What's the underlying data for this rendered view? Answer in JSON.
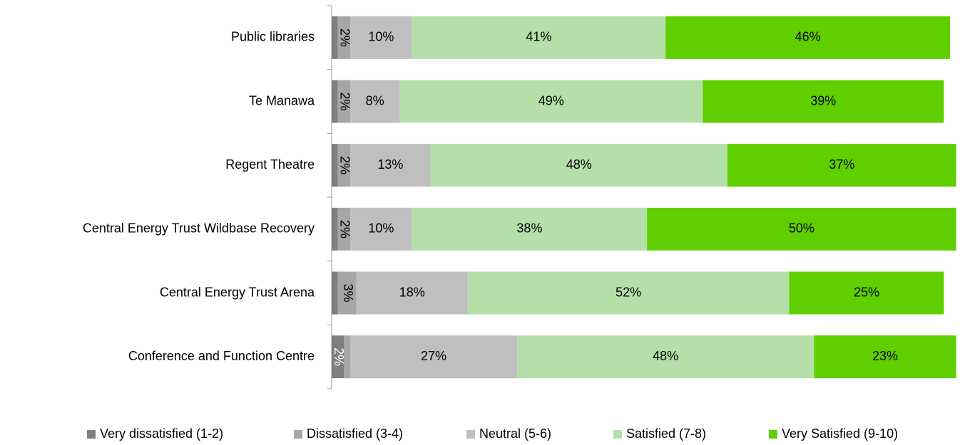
{
  "chart_data": {
    "type": "stacked-bar-horizontal",
    "categories": [
      "Public libraries",
      "Te Manawa",
      "Regent Theatre",
      "Central Energy Trust Wildbase Recovery",
      "Central Energy Trust Arena",
      "Conference and Function Centre"
    ],
    "xlim": [
      0,
      100
    ],
    "series": [
      {
        "name": "Very dissatisfied (1-2)",
        "color": "#7f7f7f",
        "values": [
          1,
          1,
          1,
          1,
          1,
          2
        ],
        "value_labels": [
          null,
          null,
          null,
          null,
          null,
          "2%"
        ]
      },
      {
        "name": "Dissatisfied (3-4)",
        "color": "#a6a6a6",
        "values": [
          2,
          2,
          2,
          2,
          3,
          1
        ],
        "value_labels": [
          "2%",
          "2%",
          "2%",
          "2%",
          "3%",
          null
        ]
      },
      {
        "name": "Neutral (5-6)",
        "color": "#bfbfbf",
        "values": [
          10,
          8,
          13,
          10,
          18,
          27
        ],
        "value_labels": [
          "10%",
          "8%",
          "13%",
          "10%",
          "18%",
          "27%"
        ]
      },
      {
        "name": "Satisfied (7-8)",
        "color": "#b5dfa8",
        "values": [
          41,
          49,
          48,
          38,
          52,
          48
        ],
        "value_labels": [
          "41%",
          "49%",
          "48%",
          "38%",
          "52%",
          "48%"
        ]
      },
      {
        "name": "Very Satisfied (9-10)",
        "color": "#5fcf00",
        "values": [
          46,
          39,
          37,
          50,
          25,
          23
        ],
        "value_labels": [
          "46%",
          "39%",
          "37%",
          "50%",
          "25%",
          "23%"
        ]
      }
    ],
    "legend": "bottom"
  }
}
